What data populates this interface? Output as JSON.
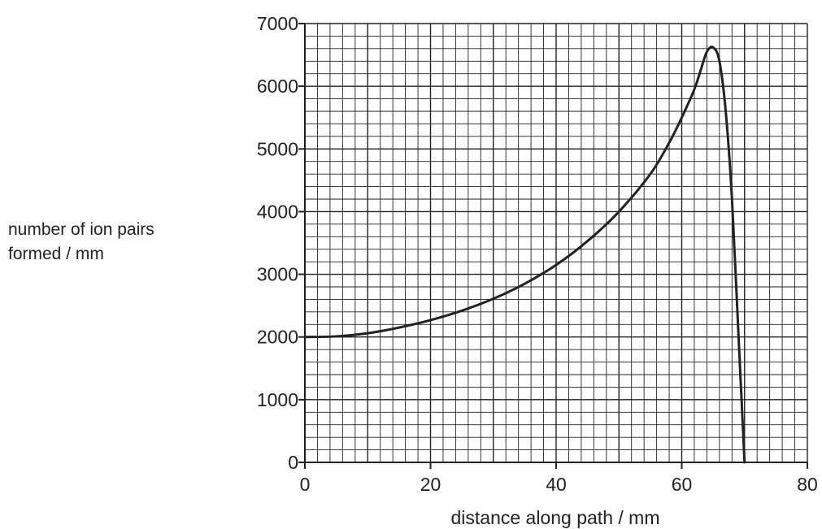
{
  "chart_data": {
    "type": "line",
    "title": "",
    "ylabel_lines": [
      "number of ion pairs",
      "formed / mm"
    ],
    "xlabel": "distance along path / mm",
    "xlim": [
      0,
      80
    ],
    "ylim": [
      0,
      7000
    ],
    "x_ticks": [
      0,
      20,
      40,
      60,
      80
    ],
    "y_ticks": [
      0,
      1000,
      2000,
      3000,
      4000,
      5000,
      6000,
      7000
    ],
    "grid": true,
    "grid_minor_x_step": 2,
    "grid_minor_y_step": 200,
    "line_color": "#222222",
    "grid_color": "#222222",
    "series": [
      {
        "x": [
          0,
          5,
          10,
          15,
          20,
          25,
          30,
          35,
          40,
          45,
          50,
          55,
          58,
          60,
          62,
          63,
          64,
          65,
          66,
          67,
          68,
          69,
          70
        ],
        "y": [
          2000,
          2010,
          2060,
          2150,
          2270,
          2420,
          2610,
          2850,
          3150,
          3530,
          4000,
          4600,
          5100,
          5500,
          5950,
          6250,
          6550,
          6620,
          6400,
          5600,
          4200,
          2100,
          0
        ]
      }
    ]
  }
}
